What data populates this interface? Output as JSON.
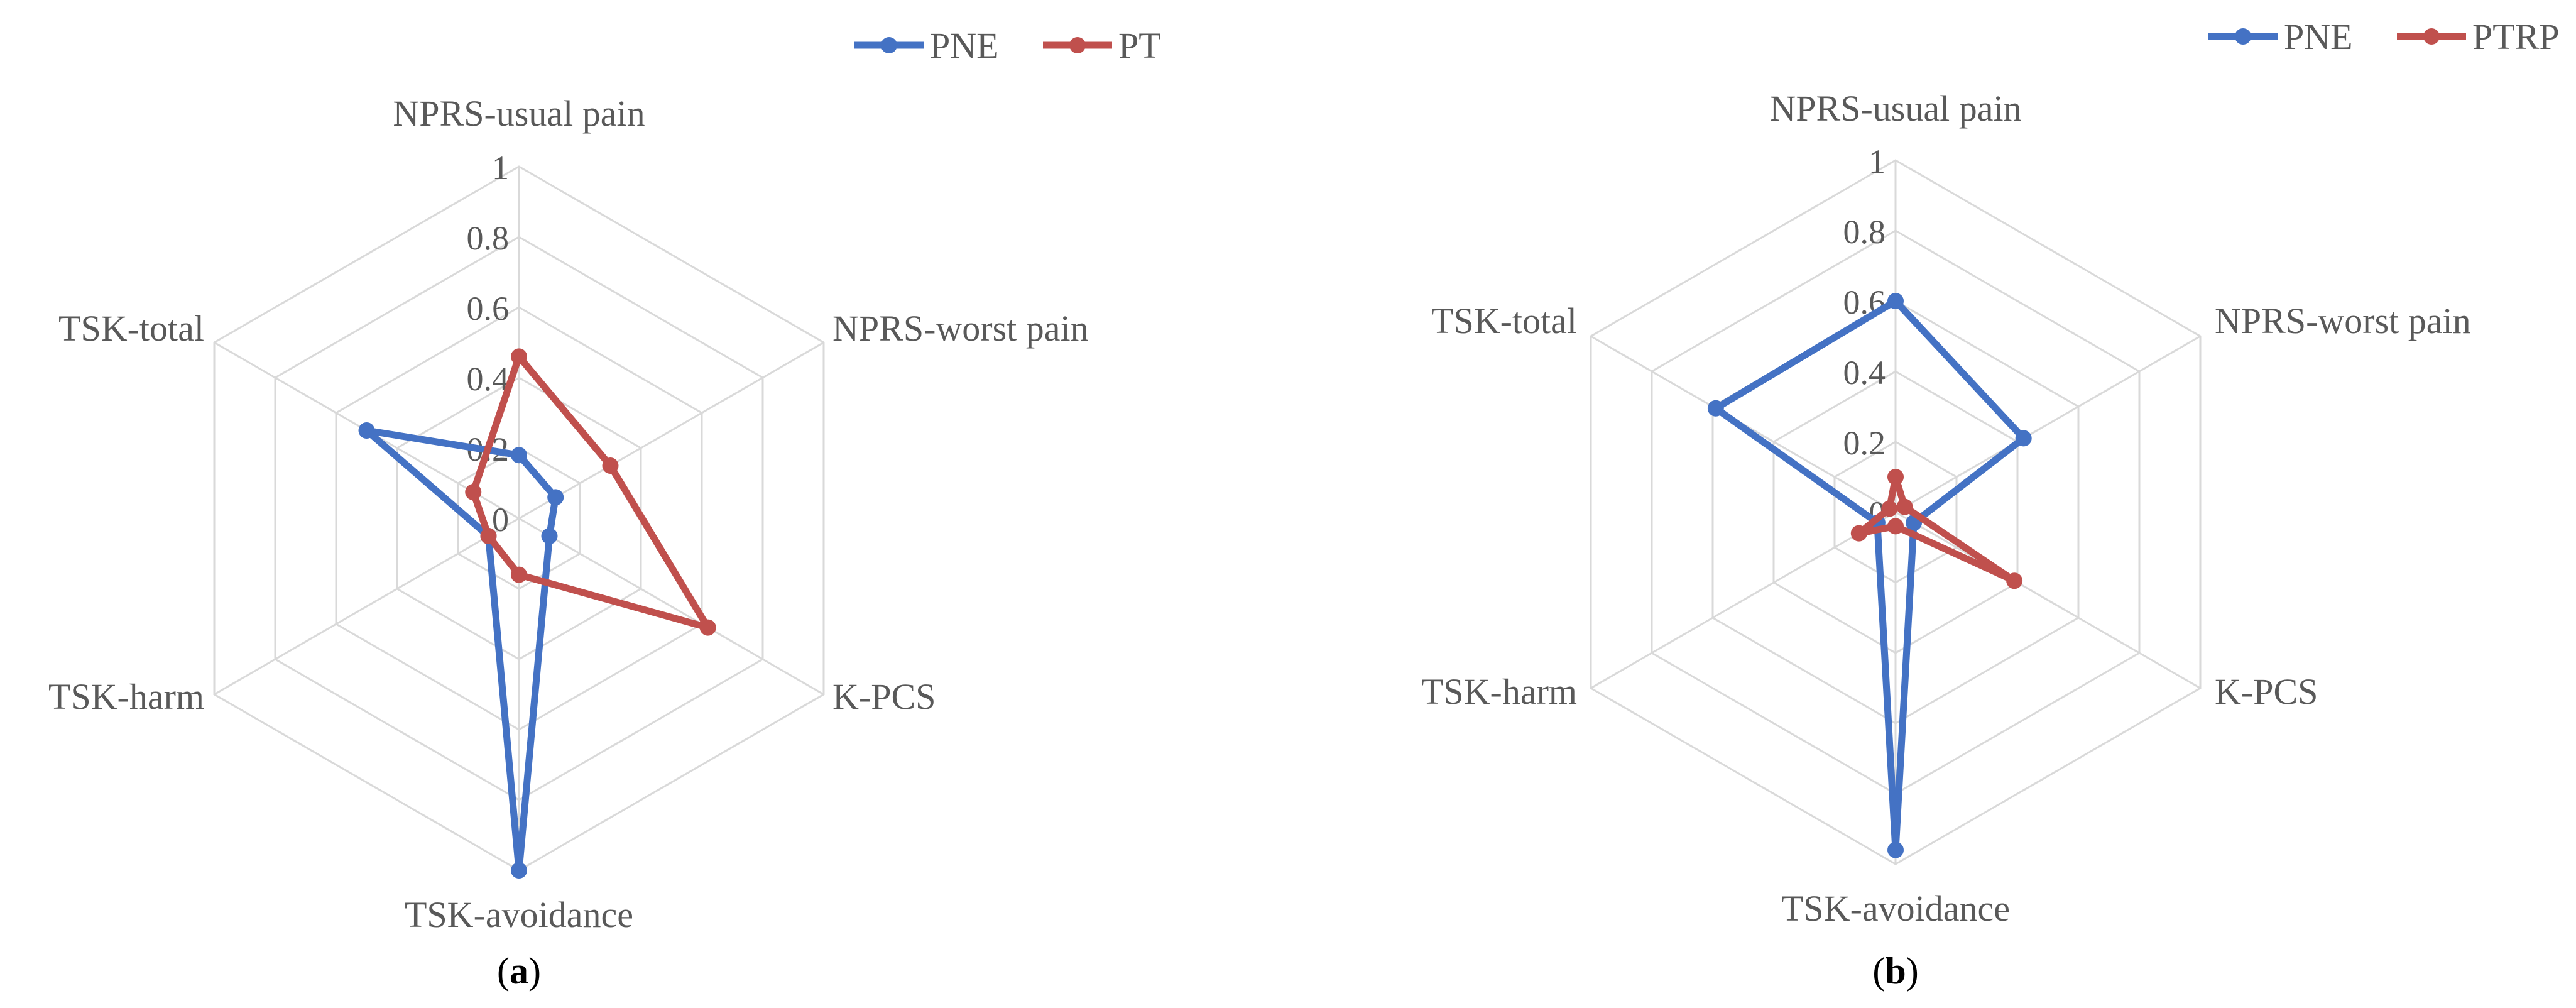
{
  "chart_data": [
    {
      "type": "radar",
      "panel_label": "a",
      "axes": [
        "NPRS-usual pain",
        "NPRS-worst pain",
        "K-PCS",
        "TSK-avoidance",
        "TSK-harm",
        "TSK-total"
      ],
      "tick_labels": [
        "0",
        "0.2",
        "0.4",
        "0.6",
        "0.8",
        "1"
      ],
      "range": [
        0,
        1
      ],
      "grid": true,
      "legend_position": "top-right",
      "series": [
        {
          "name": "PNE",
          "color": "#4472C4",
          "values": [
            0.18,
            0.12,
            0.1,
            1.0,
            0.1,
            0.5
          ]
        },
        {
          "name": "PT",
          "color": "#C0504D",
          "values": [
            0.46,
            0.3,
            0.62,
            0.16,
            0.1,
            0.15
          ]
        }
      ]
    },
    {
      "type": "radar",
      "panel_label": "b",
      "axes": [
        "NPRS-usual pain",
        "NPRS-worst pain",
        "K-PCS",
        "TSK-avoidance",
        "TSK-harm",
        "TSK-total"
      ],
      "tick_labels": [
        "0",
        "0.2",
        "0.4",
        "0.6",
        "0.8",
        "1"
      ],
      "range": [
        0,
        1
      ],
      "grid": true,
      "legend_position": "top-right",
      "series": [
        {
          "name": "PNE",
          "color": "#4472C4",
          "values": [
            0.6,
            0.42,
            0.06,
            0.96,
            0.06,
            0.59
          ]
        },
        {
          "name": "PTRP",
          "color": "#C0504D",
          "values": [
            0.1,
            0.03,
            0.39,
            0.04,
            0.12,
            0.02
          ]
        }
      ]
    }
  ]
}
